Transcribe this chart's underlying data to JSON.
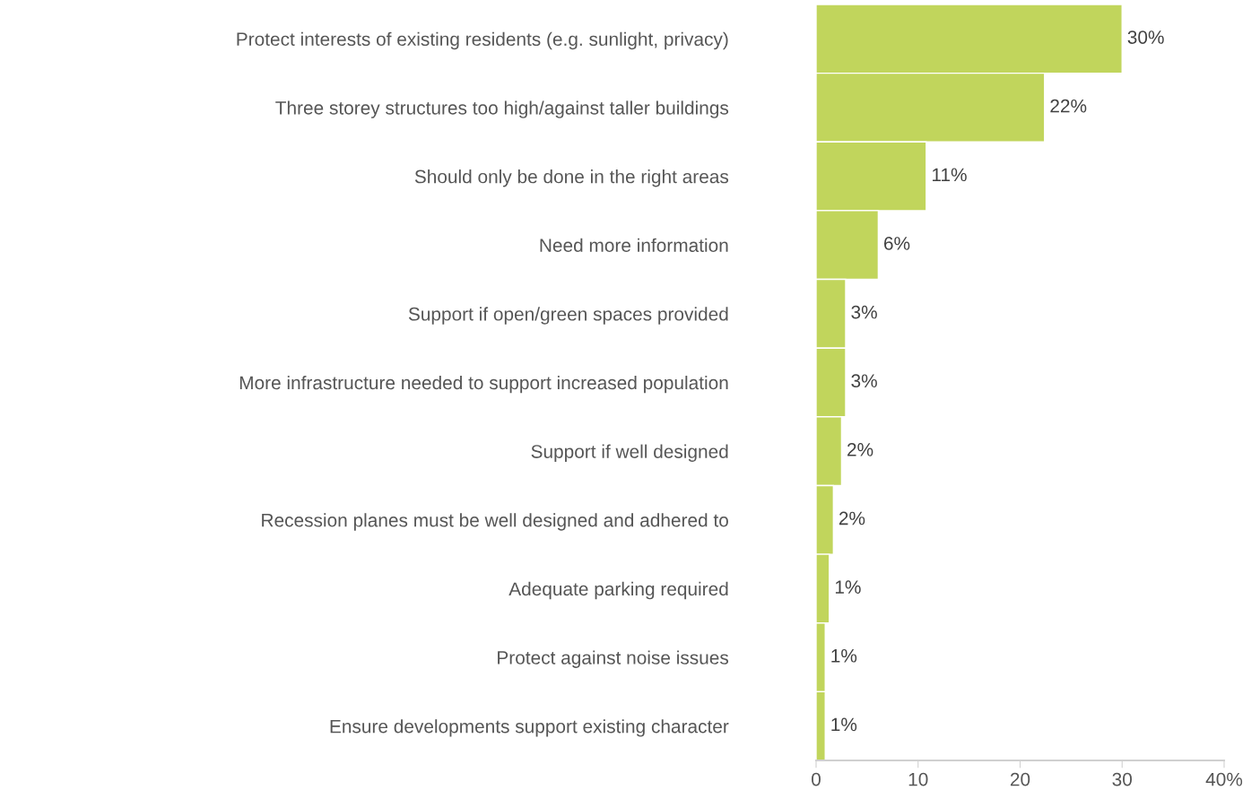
{
  "chart_data": {
    "type": "bar",
    "orientation": "horizontal",
    "categories": [
      "Protect interests of existing residents (e.g. sunlight, privacy)",
      "Three storey structures too high/against taller buildings",
      "Should only be done in the right areas",
      "Need more information",
      "Support if open/green spaces provided",
      "More infrastructure needed to support increased population",
      "Support if well designed",
      "Recession planes must be well designed and adhered to",
      "Adequate parking required",
      "Protect against noise issues",
      "Ensure developments support existing character"
    ],
    "values": [
      30,
      22.4,
      10.8,
      6.1,
      2.9,
      2.9,
      2.5,
      1.7,
      1.3,
      0.9,
      0.9
    ],
    "value_labels": [
      "30%",
      "22%",
      "11%",
      "6%",
      "3%",
      "3%",
      "2%",
      "2%",
      "1%",
      "1%",
      "1%"
    ],
    "color": "#c1d55c",
    "xlim": [
      0,
      40
    ],
    "xticks": [
      0,
      10,
      20,
      30,
      {
        "value": 40,
        "label": "40%"
      }
    ],
    "grid": false
  }
}
